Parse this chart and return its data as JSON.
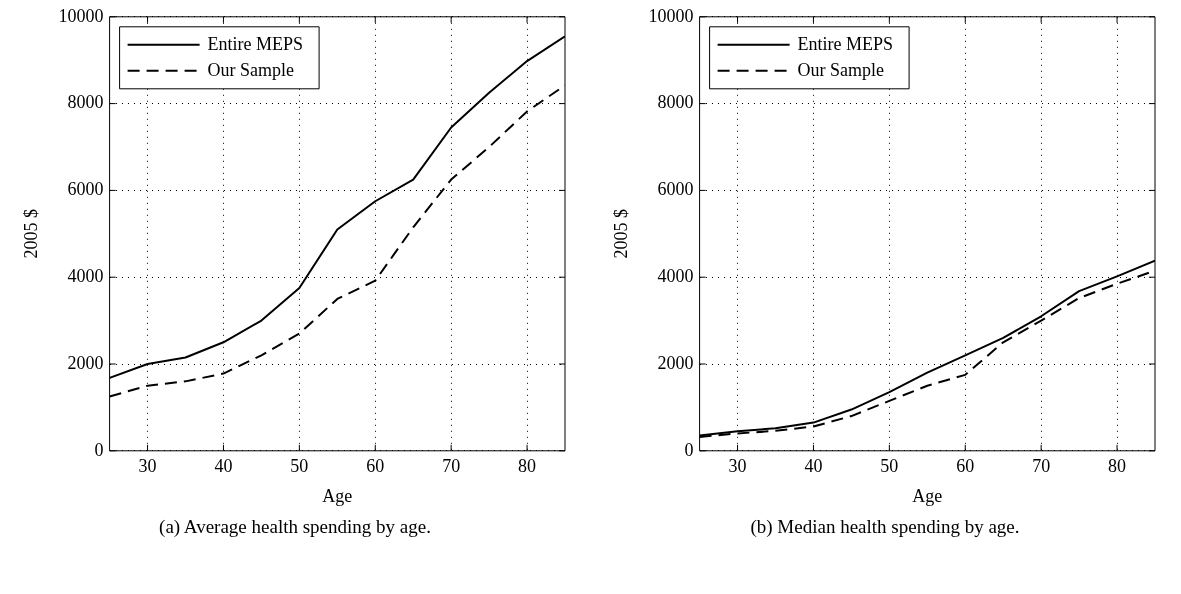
{
  "chart_data": [
    {
      "type": "line",
      "xlabel": "Age",
      "ylabel": "2005 $",
      "x": [
        25,
        30,
        35,
        40,
        45,
        50,
        55,
        60,
        65,
        70,
        75,
        80,
        85
      ],
      "series": [
        {
          "name": "Entire MEPS",
          "color": "#000000",
          "line_style": "solid",
          "values": [
            1680,
            2000,
            2150,
            2500,
            3000,
            3750,
            5100,
            5750,
            6250,
            7450,
            8250,
            8980,
            9550
          ]
        },
        {
          "name": "Our Sample",
          "color": "#000000",
          "line_style": "dashed",
          "values": [
            1250,
            1500,
            1600,
            1780,
            2200,
            2700,
            3500,
            3920,
            5150,
            6250,
            7000,
            7820,
            8420
          ]
        }
      ],
      "xlim": [
        25,
        85
      ],
      "xticks": [
        30,
        40,
        50,
        60,
        70,
        80
      ],
      "ylim": [
        0,
        10000
      ],
      "yticks": [
        0,
        2000,
        4000,
        6000,
        8000,
        10000
      ],
      "grid": true,
      "legend": "top left",
      "marker": "none",
      "annotations": [
        "(a) Average health spending by age."
      ]
    },
    {
      "type": "line",
      "xlabel": "Age",
      "ylabel": "2005 $",
      "x": [
        25,
        30,
        35,
        40,
        45,
        50,
        55,
        60,
        65,
        70,
        75,
        80,
        85
      ],
      "series": [
        {
          "name": "Entire MEPS",
          "color": "#000000",
          "line_style": "solid",
          "values": [
            350,
            450,
            520,
            650,
            950,
            1350,
            1800,
            2200,
            2600,
            3100,
            3680,
            4020,
            4380
          ]
        },
        {
          "name": "Our Sample",
          "color": "#000000",
          "line_style": "dashed",
          "values": [
            320,
            400,
            460,
            560,
            800,
            1150,
            1500,
            1750,
            2500,
            3000,
            3520,
            3850,
            4150
          ]
        }
      ],
      "xlim": [
        25,
        85
      ],
      "xticks": [
        30,
        40,
        50,
        60,
        70,
        80
      ],
      "ylim": [
        0,
        10000
      ],
      "yticks": [
        0,
        2000,
        4000,
        6000,
        8000,
        10000
      ],
      "grid": true,
      "legend": "top left",
      "marker": "none",
      "annotations": [
        "(b) Median health spending by age."
      ]
    }
  ]
}
